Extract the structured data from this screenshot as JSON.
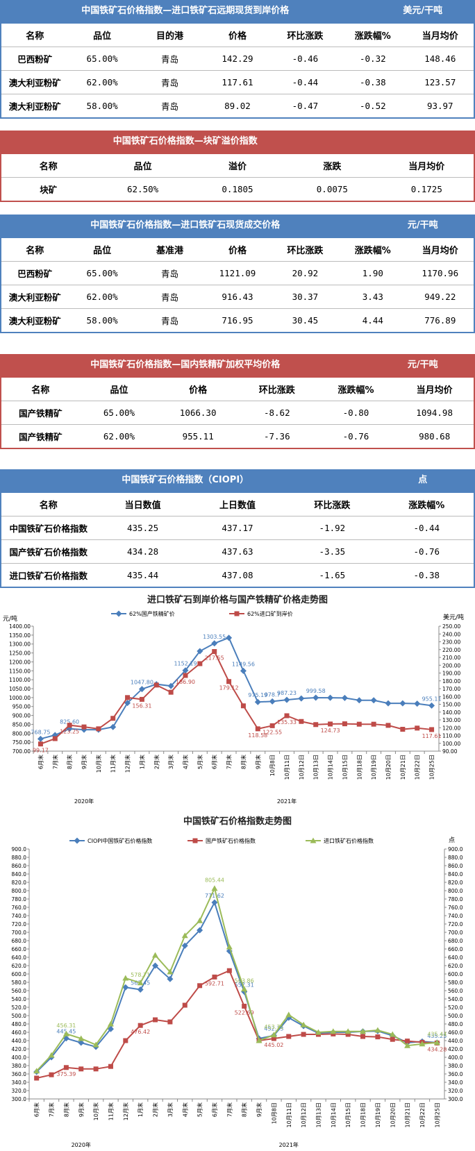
{
  "tables": [
    {
      "title": "中国铁矿石价格指数—进口铁矿石远期现货到岸价格",
      "unit": "美元/干吨",
      "color": "#4f81bd",
      "header": [
        "名称",
        "品位",
        "目的港",
        "价格",
        "环比涨跌",
        "涨跌幅%",
        "当月均价"
      ],
      "rows": [
        [
          "巴西粉矿",
          "65.00%",
          "青岛",
          "142.29",
          "-0.46",
          "-0.32",
          "148.46"
        ],
        [
          "澳大利亚粉矿",
          "62.00%",
          "青岛",
          "117.61",
          "-0.44",
          "-0.38",
          "123.57"
        ],
        [
          "澳大利亚粉矿",
          "58.00%",
          "青岛",
          "89.02",
          "-0.47",
          "-0.52",
          "93.97"
        ]
      ]
    },
    {
      "title": "中国铁矿石价格指数—块矿溢价指数",
      "color": "#c0504d",
      "header": [
        "名称",
        "品位",
        "溢价",
        "涨跌",
        "当月均价"
      ],
      "rows": [
        [
          "块矿",
          "62.50%",
          "0.1805",
          "0.0075",
          "0.1725"
        ]
      ]
    },
    {
      "title": "中国铁矿石价格指数—进口铁矿石现货成交价格",
      "unit": "元/干吨",
      "color": "#4f81bd",
      "header": [
        "名称",
        "品位",
        "基准港",
        "价格",
        "环比涨跌",
        "涨跌幅%",
        "当月均价"
      ],
      "rows": [
        [
          "巴西粉矿",
          "65.00%",
          "青岛",
          "1121.09",
          "20.92",
          "1.90",
          "1170.96"
        ],
        [
          "澳大利亚粉矿",
          "62.00%",
          "青岛",
          "916.43",
          "30.37",
          "3.43",
          "949.22"
        ],
        [
          "澳大利亚粉矿",
          "58.00%",
          "青岛",
          "716.95",
          "30.45",
          "4.44",
          "776.89"
        ]
      ]
    },
    {
      "title": "中国铁矿石价格指数—国内铁精矿加权平均价格",
      "unit": "元/干吨",
      "color": "#c0504d",
      "header": [
        "名称",
        "品位",
        "价格",
        "环比涨跌",
        "涨跌幅%",
        "当月均价"
      ],
      "rows": [
        [
          "国产铁精矿",
          "65.00%",
          "1066.30",
          "-8.62",
          "-0.80",
          "1094.98"
        ],
        [
          "国产铁精矿",
          "62.00%",
          "955.11",
          "-7.36",
          "-0.76",
          "980.68"
        ]
      ]
    },
    {
      "title": "中国铁矿石价格指数（CIOPI）",
      "unit": "点",
      "color": "#4f81bd",
      "header": [
        "名称",
        "当日数值",
        "上日数值",
        "环比涨跌",
        "涨跌幅%"
      ],
      "rows": [
        [
          "中国铁矿石价格指数",
          "435.25",
          "437.17",
          "-1.92",
          "-0.44"
        ],
        [
          "国产铁矿石价格指数",
          "434.28",
          "437.63",
          "-3.35",
          "-0.76"
        ],
        [
          "进口铁矿石价格指数",
          "435.44",
          "437.08",
          "-1.65",
          "-0.38"
        ]
      ]
    }
  ],
  "chart_data": [
    {
      "type": "line",
      "title": "进口铁矿石到岸价格与国产铁精矿价格走势图",
      "y_label": "元/吨",
      "y2_label": "美元/吨",
      "categories": [
        "6月末",
        "7月末",
        "8月末",
        "9月末",
        "10月末",
        "11月末",
        "12月末",
        "1月末",
        "2月末",
        "3月末",
        "4月末",
        "5月末",
        "6月末",
        "7月末",
        "8月末",
        "9月末",
        "10月8日",
        "10月11日",
        "10月12日",
        "10月13日",
        "10月14日",
        "10月15日",
        "10月18日",
        "10月19日",
        "10月20日",
        "10月21日",
        "10月22日",
        "10月25日"
      ],
      "x_groups": [
        {
          "label": "2020年",
          "from": 0,
          "to": 6
        },
        {
          "label": "2021年",
          "from": 7,
          "to": 27
        }
      ],
      "series": [
        {
          "name": "62%国产铁精矿价",
          "color": "#4a7ebb",
          "marker": "diamond",
          "axis": "y",
          "values": [
            768.75,
            790,
            825.6,
            820,
            820,
            835,
            970,
            1047.8,
            1075,
            1065,
            1152.19,
            1260,
            1303.55,
            1335,
            1149.56,
            975.19,
            978.7,
            987.23,
            995,
            999.58,
            999,
            998,
            985,
            985,
            968,
            968,
            966,
            955.11
          ],
          "value_labels": [
            "768.75",
            null,
            "825.60",
            null,
            null,
            null,
            null,
            "1047.80",
            null,
            null,
            "1152.19",
            null,
            "1303.55",
            null,
            "1149.56",
            "975.19",
            "978.7",
            "987.23",
            null,
            "999.58",
            null,
            null,
            null,
            null,
            null,
            null,
            null,
            "955.11"
          ]
        },
        {
          "name": "62%进口矿到岸价",
          "color": "#be4b48",
          "marker": "square",
          "axis": "y2",
          "values": [
            99.17,
            106,
            123.25,
            121,
            118.6,
            132,
            158.6,
            156.31,
            174.6,
            165.4,
            186.9,
            202,
            217.55,
            179.12,
            148,
            118.58,
            122.55,
            135.33,
            128,
            124,
            124.73,
            125,
            124.5,
            124.5,
            123,
            118,
            119.5,
            117.61
          ],
          "value_labels": [
            "99.17",
            null,
            "123.25",
            null,
            null,
            null,
            null,
            "156.31",
            null,
            null,
            "186.90",
            null,
            "217.55",
            "179.12",
            null,
            "118.58",
            "122.55",
            "135.33",
            null,
            null,
            "124.73",
            null,
            null,
            null,
            null,
            null,
            null,
            "117.61"
          ]
        }
      ],
      "ylim": [
        700,
        1400
      ],
      "yticks": [
        {
          "value": 700,
          "label": "700.00"
        },
        {
          "value": 750,
          "label": "750.00"
        },
        {
          "value": 800,
          "label": "800.00"
        },
        {
          "value": 850,
          "label": "850.00"
        },
        {
          "value": 900,
          "label": "900.00"
        },
        {
          "value": 950,
          "label": "950.00"
        },
        {
          "value": 1000,
          "label": "1000.00"
        },
        {
          "value": 1050,
          "label": "1050.00"
        },
        {
          "value": 1100,
          "label": "1100.00"
        },
        {
          "value": 1150,
          "label": "1150.00"
        },
        {
          "value": 1200,
          "label": "1200.00"
        },
        {
          "value": 1250,
          "label": "1250.00"
        },
        {
          "value": 1300,
          "label": "1300.00"
        },
        {
          "value": 1350,
          "label": "1350.00"
        },
        {
          "value": 1400,
          "label": "1400.00"
        }
      ],
      "y2lim": [
        90,
        250
      ],
      "y2ticks": [
        {
          "value": 90,
          "label": "90.00"
        },
        {
          "value": 100,
          "label": "100.00"
        },
        {
          "value": 110,
          "label": "110.00"
        },
        {
          "value": 120,
          "label": "120.00"
        },
        {
          "value": 130,
          "label": "130.00"
        },
        {
          "value": 140,
          "label": "140.00"
        },
        {
          "value": 150,
          "label": "150.00"
        },
        {
          "value": 160,
          "label": "160.00"
        },
        {
          "value": 170,
          "label": "170.00"
        },
        {
          "value": 180,
          "label": "180.00"
        },
        {
          "value": 190,
          "label": "190.00"
        },
        {
          "value": 200,
          "label": "200.00"
        },
        {
          "value": 210,
          "label": "210.00"
        },
        {
          "value": 220,
          "label": "220.00"
        },
        {
          "value": 230,
          "label": "230.00"
        },
        {
          "value": 240,
          "label": "240.00"
        },
        {
          "value": 250,
          "label": "250.00"
        }
      ]
    },
    {
      "type": "line",
      "title": "中国铁矿石价格指数走势图",
      "y2_label": "点",
      "categories": [
        "6月末",
        "7月末",
        "8月末",
        "9月末",
        "10月末",
        "11月末",
        "12月末",
        "1月末",
        "2月末",
        "3月末",
        "4月末",
        "5月末",
        "6月末",
        "7月末",
        "8月末",
        "9月末",
        "10月8日",
        "10月11日",
        "10月12日",
        "10月13日",
        "10月14日",
        "10月15日",
        "10月18日",
        "10月19日",
        "10月20日",
        "10月21日",
        "10月22日",
        "10月25日"
      ],
      "x_groups": [
        {
          "label": "2020年",
          "from": 0,
          "to": 6
        },
        {
          "label": "2021年",
          "from": 7,
          "to": 27
        }
      ],
      "series": [
        {
          "name": "CIOPI中国铁矿石价格指数",
          "color": "#4a7ebb",
          "marker": "diamond",
          "axis": "y",
          "values": [
            365,
            400,
            445.45,
            435,
            425,
            468,
            568,
            562.45,
            620,
            588,
            668,
            705,
            771.62,
            655,
            557.31,
            445,
            452.33,
            495,
            475,
            458,
            460,
            460,
            462,
            463,
            452,
            435,
            438,
            435.25
          ],
          "value_labels": [
            null,
            null,
            "445.45",
            null,
            null,
            null,
            null,
            "562.45",
            null,
            null,
            null,
            null,
            "771.62",
            null,
            "557.31",
            null,
            "452.33",
            null,
            null,
            null,
            null,
            null,
            null,
            null,
            null,
            null,
            null,
            "435.25"
          ]
        },
        {
          "name": "国产铁矿石价格指数",
          "color": "#be4b48",
          "marker": "square",
          "axis": "y",
          "values": [
            350,
            358,
            375.39,
            372,
            372,
            378,
            440,
            476.42,
            490,
            485,
            525,
            572,
            592.71,
            608,
            522.69,
            440,
            445.02,
            450,
            455,
            455,
            456,
            455,
            450,
            449,
            443,
            439,
            436,
            434.28
          ],
          "value_labels": [
            null,
            null,
            "375.39",
            null,
            null,
            null,
            null,
            "476.42",
            null,
            null,
            null,
            null,
            "592.71",
            null,
            "522.69",
            null,
            "445.02",
            null,
            null,
            null,
            null,
            null,
            null,
            null,
            null,
            null,
            null,
            "434.28"
          ]
        },
        {
          "name": "进口铁矿石价格指数",
          "color": "#9bbb59",
          "marker": "triangle",
          "axis": "y",
          "values": [
            367,
            405,
            456.31,
            445,
            430,
            480,
            590,
            578.71,
            645,
            605,
            692,
            728,
            805.44,
            665,
            563.86,
            440,
            453.71,
            502,
            478,
            460,
            462,
            462,
            462,
            465,
            455,
            428,
            432,
            435.44
          ],
          "value_labels": [
            null,
            null,
            "456.31",
            null,
            null,
            null,
            null,
            "578.71",
            null,
            null,
            null,
            null,
            "805.44",
            null,
            "563.86",
            null,
            "453.71",
            null,
            null,
            null,
            null,
            null,
            null,
            null,
            null,
            null,
            null,
            "435.44"
          ]
        }
      ],
      "ylim": [
        300,
        900
      ],
      "yticks": [
        {
          "value": 300,
          "label": "300.0"
        },
        {
          "value": 320,
          "label": "320.0"
        },
        {
          "value": 340,
          "label": "340.0"
        },
        {
          "value": 360,
          "label": "360.0"
        },
        {
          "value": 380,
          "label": "380.0"
        },
        {
          "value": 400,
          "label": "400.0"
        },
        {
          "value": 420,
          "label": "420.0"
        },
        {
          "value": 440,
          "label": "440.0"
        },
        {
          "value": 460,
          "label": "460.0"
        },
        {
          "value": 480,
          "label": "480.0"
        },
        {
          "value": 500,
          "label": "500.0"
        },
        {
          "value": 520,
          "label": "520.0"
        },
        {
          "value": 540,
          "label": "540.0"
        },
        {
          "value": 560,
          "label": "560.0"
        },
        {
          "value": 580,
          "label": "580.0"
        },
        {
          "value": 600,
          "label": "600.0"
        },
        {
          "value": 620,
          "label": "620.0"
        },
        {
          "value": 640,
          "label": "640.0"
        },
        {
          "value": 660,
          "label": "660.0"
        },
        {
          "value": 680,
          "label": "680.0"
        },
        {
          "value": 700,
          "label": "700.0"
        },
        {
          "value": 720,
          "label": "720.0"
        },
        {
          "value": 740,
          "label": "740.0"
        },
        {
          "value": 760,
          "label": "760.0"
        },
        {
          "value": 780,
          "label": "780.0"
        },
        {
          "value": 800,
          "label": "800.0"
        },
        {
          "value": 820,
          "label": "820.0"
        },
        {
          "value": 840,
          "label": "840.0"
        },
        {
          "value": 860,
          "label": "860.0"
        },
        {
          "value": 880,
          "label": "880.0"
        },
        {
          "value": 900,
          "label": "900.0"
        }
      ],
      "y2lim": [
        300,
        900
      ],
      "y2ticks": [
        {
          "value": 300,
          "label": "300.0"
        },
        {
          "value": 320,
          "label": "320.0"
        },
        {
          "value": 340,
          "label": "340.0"
        },
        {
          "value": 360,
          "label": "360.0"
        },
        {
          "value": 380,
          "label": "380.0"
        },
        {
          "value": 400,
          "label": "400.0"
        },
        {
          "value": 420,
          "label": "420.0"
        },
        {
          "value": 440,
          "label": "440.0"
        },
        {
          "value": 460,
          "label": "460.0"
        },
        {
          "value": 480,
          "label": "480.0"
        },
        {
          "value": 500,
          "label": "500.0"
        },
        {
          "value": 520,
          "label": "520.0"
        },
        {
          "value": 540,
          "label": "540.0"
        },
        {
          "value": 560,
          "label": "560.0"
        },
        {
          "value": 580,
          "label": "580.0"
        },
        {
          "value": 600,
          "label": "600.0"
        },
        {
          "value": 620,
          "label": "620.0"
        },
        {
          "value": 640,
          "label": "640.0"
        },
        {
          "value": 660,
          "label": "660.0"
        },
        {
          "value": 680,
          "label": "680.0"
        },
        {
          "value": 700,
          "label": "700.0"
        },
        {
          "value": 720,
          "label": "720.0"
        },
        {
          "value": 740,
          "label": "740.0"
        },
        {
          "value": 760,
          "label": "760.0"
        },
        {
          "value": 780,
          "label": "780.0"
        },
        {
          "value": 800,
          "label": "800.0"
        },
        {
          "value": 820,
          "label": "820.0"
        },
        {
          "value": 840,
          "label": "840.0"
        },
        {
          "value": 860,
          "label": "860.0"
        },
        {
          "value": 880,
          "label": "880.0"
        },
        {
          "value": 900,
          "label": "900.0"
        }
      ]
    }
  ]
}
